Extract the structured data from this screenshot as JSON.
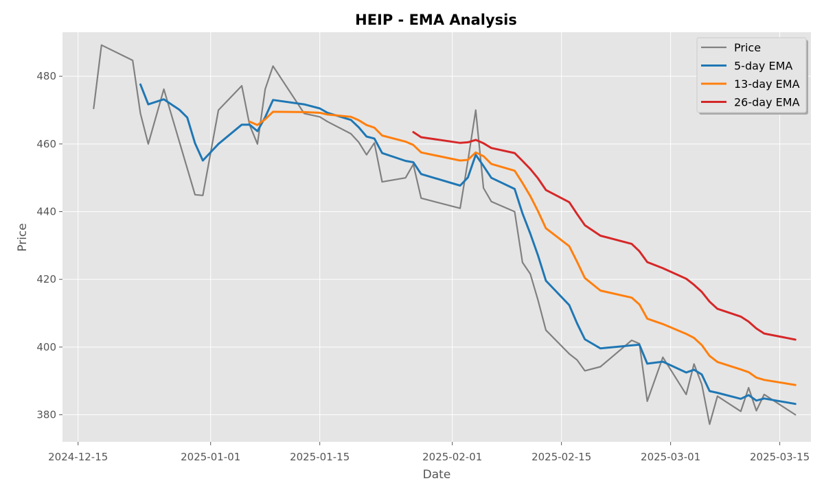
{
  "chart_data": {
    "type": "line",
    "title": "HEIP - EMA Analysis",
    "xlabel": "Date",
    "ylabel": "Price",
    "xlim": [
      "2024-12-13",
      "2025-03-19"
    ],
    "ylim": [
      372,
      493
    ],
    "x_ticks": [
      "2024-12-15",
      "2025-01-01",
      "2025-01-15",
      "2025-02-01",
      "2025-02-15",
      "2025-03-01",
      "2025-03-15"
    ],
    "y_ticks": [
      380,
      400,
      420,
      440,
      460,
      480
    ],
    "grid": true,
    "legend_position": "top-right",
    "background_color": "#e5e5e5",
    "series": [
      {
        "name": "Price",
        "color": "#808080",
        "points": [
          {
            "x": "2024-12-17",
            "y": 470.5
          },
          {
            "x": "2024-12-18",
            "y": 489.2
          },
          {
            "x": "2024-12-22",
            "y": 484.7
          },
          {
            "x": "2024-12-23",
            "y": 469.0
          },
          {
            "x": "2024-12-24",
            "y": 460.0
          },
          {
            "x": "2024-12-26",
            "y": 476.2
          },
          {
            "x": "2024-12-30",
            "y": 445.0
          },
          {
            "x": "2024-12-31",
            "y": 444.8
          },
          {
            "x": "2025-01-02",
            "y": 470.0
          },
          {
            "x": "2025-01-05",
            "y": 477.2
          },
          {
            "x": "2025-01-06",
            "y": 465.6
          },
          {
            "x": "2025-01-07",
            "y": 460.0
          },
          {
            "x": "2025-01-08",
            "y": 476.2
          },
          {
            "x": "2025-01-09",
            "y": 483.0
          },
          {
            "x": "2025-01-13",
            "y": 469.0
          },
          {
            "x": "2025-01-15",
            "y": 468.0
          },
          {
            "x": "2025-01-16",
            "y": 466.6
          },
          {
            "x": "2025-01-19",
            "y": 463.0
          },
          {
            "x": "2025-01-20",
            "y": 460.5
          },
          {
            "x": "2025-01-21",
            "y": 456.8
          },
          {
            "x": "2025-01-22",
            "y": 460.3
          },
          {
            "x": "2025-01-23",
            "y": 448.8
          },
          {
            "x": "2025-01-26",
            "y": 450.0
          },
          {
            "x": "2025-01-27",
            "y": 454.0
          },
          {
            "x": "2025-01-28",
            "y": 444.0
          },
          {
            "x": "2025-02-02",
            "y": 441.0
          },
          {
            "x": "2025-02-03",
            "y": 455.0
          },
          {
            "x": "2025-02-04",
            "y": 470.0
          },
          {
            "x": "2025-02-05",
            "y": 447.0
          },
          {
            "x": "2025-02-06",
            "y": 443.0
          },
          {
            "x": "2025-02-09",
            "y": 440.0
          },
          {
            "x": "2025-02-10",
            "y": 425.0
          },
          {
            "x": "2025-02-11",
            "y": 421.6
          },
          {
            "x": "2025-02-12",
            "y": 413.8
          },
          {
            "x": "2025-02-13",
            "y": 405.0
          },
          {
            "x": "2025-02-16",
            "y": 398.0
          },
          {
            "x": "2025-02-17",
            "y": 396.2
          },
          {
            "x": "2025-02-18",
            "y": 393.0
          },
          {
            "x": "2025-02-20",
            "y": 394.2
          },
          {
            "x": "2025-02-24",
            "y": 402.0
          },
          {
            "x": "2025-02-25",
            "y": 401.0
          },
          {
            "x": "2025-02-26",
            "y": 384.0
          },
          {
            "x": "2025-02-28",
            "y": 397.0
          },
          {
            "x": "2025-03-03",
            "y": 386.0
          },
          {
            "x": "2025-03-04",
            "y": 395.0
          },
          {
            "x": "2025-03-05",
            "y": 389.0
          },
          {
            "x": "2025-03-06",
            "y": 377.2
          },
          {
            "x": "2025-03-07",
            "y": 385.5
          },
          {
            "x": "2025-03-10",
            "y": 381.0
          },
          {
            "x": "2025-03-11",
            "y": 388.0
          },
          {
            "x": "2025-03-12",
            "y": 381.2
          },
          {
            "x": "2025-03-13",
            "y": 386.0
          },
          {
            "x": "2025-03-17",
            "y": 380.0
          }
        ]
      },
      {
        "name": "5-day EMA",
        "color": "#1f77b4",
        "points": [
          {
            "x": "2024-12-23",
            "y": 477.6
          },
          {
            "x": "2024-12-24",
            "y": 471.7
          },
          {
            "x": "2024-12-26",
            "y": 473.2
          },
          {
            "x": "2024-12-28",
            "y": 470.1
          },
          {
            "x": "2024-12-29",
            "y": 467.8
          },
          {
            "x": "2024-12-30",
            "y": 460.2
          },
          {
            "x": "2024-12-31",
            "y": 455.1
          },
          {
            "x": "2025-01-02",
            "y": 460.0
          },
          {
            "x": "2025-01-05",
            "y": 465.7
          },
          {
            "x": "2025-01-06",
            "y": 465.7
          },
          {
            "x": "2025-01-07",
            "y": 463.8
          },
          {
            "x": "2025-01-08",
            "y": 467.9
          },
          {
            "x": "2025-01-09",
            "y": 473.0
          },
          {
            "x": "2025-01-13",
            "y": 471.7
          },
          {
            "x": "2025-01-15",
            "y": 470.5
          },
          {
            "x": "2025-01-16",
            "y": 469.2
          },
          {
            "x": "2025-01-19",
            "y": 467.1
          },
          {
            "x": "2025-01-20",
            "y": 464.9
          },
          {
            "x": "2025-01-21",
            "y": 462.2
          },
          {
            "x": "2025-01-22",
            "y": 461.6
          },
          {
            "x": "2025-01-23",
            "y": 457.3
          },
          {
            "x": "2025-01-26",
            "y": 455.0
          },
          {
            "x": "2025-01-27",
            "y": 454.6
          },
          {
            "x": "2025-01-28",
            "y": 451.1
          },
          {
            "x": "2025-02-02",
            "y": 447.7
          },
          {
            "x": "2025-02-03",
            "y": 450.1
          },
          {
            "x": "2025-02-04",
            "y": 456.8
          },
          {
            "x": "2025-02-05",
            "y": 453.5
          },
          {
            "x": "2025-02-06",
            "y": 450.0
          },
          {
            "x": "2025-02-09",
            "y": 446.7
          },
          {
            "x": "2025-02-10",
            "y": 439.5
          },
          {
            "x": "2025-02-11",
            "y": 433.5
          },
          {
            "x": "2025-02-12",
            "y": 427.0
          },
          {
            "x": "2025-02-13",
            "y": 419.6
          },
          {
            "x": "2025-02-16",
            "y": 412.4
          },
          {
            "x": "2025-02-17",
            "y": 407.0
          },
          {
            "x": "2025-02-18",
            "y": 402.3
          },
          {
            "x": "2025-02-20",
            "y": 399.6
          },
          {
            "x": "2025-02-24",
            "y": 400.5
          },
          {
            "x": "2025-02-25",
            "y": 400.7
          },
          {
            "x": "2025-02-26",
            "y": 395.1
          },
          {
            "x": "2025-02-28",
            "y": 395.7
          },
          {
            "x": "2025-03-03",
            "y": 392.5
          },
          {
            "x": "2025-03-04",
            "y": 393.3
          },
          {
            "x": "2025-03-05",
            "y": 391.9
          },
          {
            "x": "2025-03-06",
            "y": 387.0
          },
          {
            "x": "2025-03-07",
            "y": 386.5
          },
          {
            "x": "2025-03-10",
            "y": 384.7
          },
          {
            "x": "2025-03-11",
            "y": 385.8
          },
          {
            "x": "2025-03-12",
            "y": 384.2
          },
          {
            "x": "2025-03-13",
            "y": 384.8
          },
          {
            "x": "2025-03-17",
            "y": 383.2
          }
        ]
      },
      {
        "name": "13-day EMA",
        "color": "#ff7f0e",
        "points": [
          {
            "x": "2025-01-06",
            "y": 466.6
          },
          {
            "x": "2025-01-07",
            "y": 465.6
          },
          {
            "x": "2025-01-08",
            "y": 467.3
          },
          {
            "x": "2025-01-09",
            "y": 469.5
          },
          {
            "x": "2025-01-13",
            "y": 469.4
          },
          {
            "x": "2025-01-15",
            "y": 469.2
          },
          {
            "x": "2025-01-16",
            "y": 468.7
          },
          {
            "x": "2025-01-19",
            "y": 468.0
          },
          {
            "x": "2025-01-20",
            "y": 467.0
          },
          {
            "x": "2025-01-21",
            "y": 465.6
          },
          {
            "x": "2025-01-22",
            "y": 464.8
          },
          {
            "x": "2025-01-23",
            "y": 462.5
          },
          {
            "x": "2025-01-26",
            "y": 460.7
          },
          {
            "x": "2025-01-27",
            "y": 459.7
          },
          {
            "x": "2025-01-28",
            "y": 457.5
          },
          {
            "x": "2025-02-02",
            "y": 455.1
          },
          {
            "x": "2025-02-03",
            "y": 455.3
          },
          {
            "x": "2025-02-04",
            "y": 457.5
          },
          {
            "x": "2025-02-05",
            "y": 456.4
          },
          {
            "x": "2025-02-06",
            "y": 454.1
          },
          {
            "x": "2025-02-09",
            "y": 452.1
          },
          {
            "x": "2025-02-10",
            "y": 448.5
          },
          {
            "x": "2025-02-11",
            "y": 444.6
          },
          {
            "x": "2025-02-12",
            "y": 440.1
          },
          {
            "x": "2025-02-13",
            "y": 435.1
          },
          {
            "x": "2025-02-16",
            "y": 429.8
          },
          {
            "x": "2025-02-17",
            "y": 425.2
          },
          {
            "x": "2025-02-18",
            "y": 420.4
          },
          {
            "x": "2025-02-20",
            "y": 416.7
          },
          {
            "x": "2025-02-24",
            "y": 414.6
          },
          {
            "x": "2025-02-25",
            "y": 412.6
          },
          {
            "x": "2025-02-26",
            "y": 408.4
          },
          {
            "x": "2025-02-28",
            "y": 406.8
          },
          {
            "x": "2025-03-03",
            "y": 403.9
          },
          {
            "x": "2025-03-04",
            "y": 402.7
          },
          {
            "x": "2025-03-05",
            "y": 400.6
          },
          {
            "x": "2025-03-06",
            "y": 397.4
          },
          {
            "x": "2025-03-07",
            "y": 395.6
          },
          {
            "x": "2025-03-10",
            "y": 393.4
          },
          {
            "x": "2025-03-11",
            "y": 392.6
          },
          {
            "x": "2025-03-12",
            "y": 391.0
          },
          {
            "x": "2025-03-13",
            "y": 390.3
          },
          {
            "x": "2025-03-17",
            "y": 388.8
          }
        ]
      },
      {
        "name": "26-day EMA",
        "color": "#d62728",
        "points": [
          {
            "x": "2025-01-27",
            "y": 463.5
          },
          {
            "x": "2025-01-28",
            "y": 462.0
          },
          {
            "x": "2025-02-02",
            "y": 460.3
          },
          {
            "x": "2025-02-03",
            "y": 460.5
          },
          {
            "x": "2025-02-04",
            "y": 461.2
          },
          {
            "x": "2025-02-05",
            "y": 460.2
          },
          {
            "x": "2025-02-06",
            "y": 458.8
          },
          {
            "x": "2025-02-09",
            "y": 457.3
          },
          {
            "x": "2025-02-10",
            "y": 455.0
          },
          {
            "x": "2025-02-11",
            "y": 452.6
          },
          {
            "x": "2025-02-12",
            "y": 449.8
          },
          {
            "x": "2025-02-13",
            "y": 446.4
          },
          {
            "x": "2025-02-16",
            "y": 442.8
          },
          {
            "x": "2025-02-17",
            "y": 439.3
          },
          {
            "x": "2025-02-18",
            "y": 436.0
          },
          {
            "x": "2025-02-20",
            "y": 432.9
          },
          {
            "x": "2025-02-24",
            "y": 430.5
          },
          {
            "x": "2025-02-25",
            "y": 428.3
          },
          {
            "x": "2025-02-26",
            "y": 425.1
          },
          {
            "x": "2025-02-28",
            "y": 423.3
          },
          {
            "x": "2025-03-03",
            "y": 420.2
          },
          {
            "x": "2025-03-04",
            "y": 418.4
          },
          {
            "x": "2025-03-05",
            "y": 416.3
          },
          {
            "x": "2025-03-06",
            "y": 413.4
          },
          {
            "x": "2025-03-07",
            "y": 411.3
          },
          {
            "x": "2025-03-10",
            "y": 409.0
          },
          {
            "x": "2025-03-11",
            "y": 407.5
          },
          {
            "x": "2025-03-12",
            "y": 405.5
          },
          {
            "x": "2025-03-13",
            "y": 404.0
          },
          {
            "x": "2025-03-17",
            "y": 402.2
          }
        ]
      }
    ]
  }
}
